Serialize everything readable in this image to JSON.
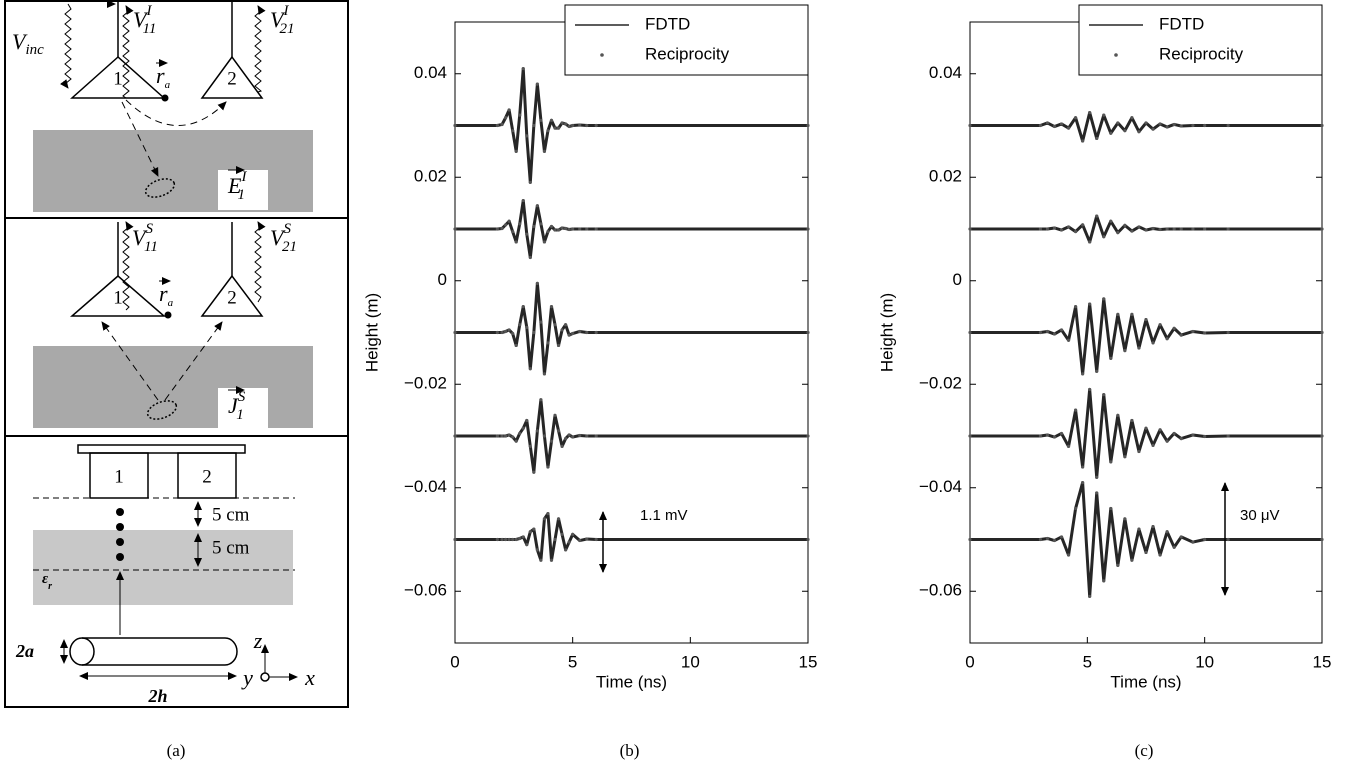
{
  "diagram": {
    "caption": "(a)",
    "top": {
      "antennas": [
        "1",
        "2"
      ],
      "v_inc": {
        "base": "V",
        "sub": "inc"
      },
      "v11": {
        "base": "V",
        "sub": "11",
        "sup": "I"
      },
      "v21": {
        "base": "V",
        "sub": "21",
        "sup": "I"
      },
      "ra": {
        "base": "r",
        "sub": "a"
      },
      "field": {
        "base": "E",
        "sub": "1",
        "sup": "I"
      }
    },
    "middle": {
      "antennas": [
        "1",
        "2"
      ],
      "v11": {
        "base": "V",
        "sub": "11",
        "sup": "S"
      },
      "v21": {
        "base": "V",
        "sub": "21",
        "sup": "S"
      },
      "ra": {
        "base": "r",
        "sub": "a"
      },
      "current": {
        "base": "J",
        "sub": "1",
        "sup": "S"
      }
    },
    "bottom": {
      "antennas": [
        "1",
        "2"
      ],
      "gap_1": "5 cm",
      "gap_2": "5 cm",
      "eps": {
        "base": "ε",
        "sub": "r"
      },
      "radius": "2a",
      "length": "2h",
      "axis_z": "z",
      "axis_y": "y",
      "axis_x": "x"
    }
  },
  "chart_data": [
    {
      "type": "line",
      "caption": "(b)",
      "xlabel": "Time (ns)",
      "ylabel": "Height (m)",
      "annotation": "1.1 mV",
      "xlim": [
        0,
        15
      ],
      "xticks": [
        0,
        5,
        10,
        15
      ],
      "ylim": [
        -0.07,
        0.05
      ],
      "yticks": [
        {
          "value": -0.06,
          "label": "−0.06"
        },
        {
          "value": -0.04,
          "label": "−0.04"
        },
        {
          "value": -0.02,
          "label": "−0.02"
        },
        0,
        0.02,
        0.04
      ],
      "legend": "upper right",
      "series": [
        {
          "name": "FDTD",
          "style": "line",
          "color": "#262626"
        },
        {
          "name": "Reciprocity",
          "style": "dots",
          "color": "#555555"
        }
      ],
      "x": [
        0,
        1.8,
        2.0,
        2.15,
        2.3,
        2.45,
        2.6,
        2.75,
        2.9,
        3.05,
        3.2,
        3.35,
        3.5,
        3.65,
        3.8,
        3.95,
        4.1,
        4.25,
        4.4,
        4.55,
        4.7,
        4.85,
        5.0,
        5.3,
        5.6,
        6.0,
        15
      ],
      "traces": [
        [
          0.03,
          0.03,
          0.0302,
          0.0315,
          0.033,
          0.029,
          0.025,
          0.032,
          0.041,
          0.028,
          0.019,
          0.03,
          0.038,
          0.031,
          0.025,
          0.029,
          0.031,
          0.0295,
          0.0295,
          0.0305,
          0.0303,
          0.0298,
          0.03,
          0.0301,
          0.03,
          0.03,
          0.03
        ],
        [
          0.01,
          0.01,
          0.0101,
          0.0108,
          0.0115,
          0.0095,
          0.0075,
          0.011,
          0.0155,
          0.009,
          0.0045,
          0.0105,
          0.0145,
          0.011,
          0.0075,
          0.0095,
          0.0105,
          0.0098,
          0.0098,
          0.0102,
          0.0101,
          0.0099,
          0.01,
          0.01,
          0.01,
          0.01,
          0.01
        ],
        [
          -0.01,
          -0.01,
          -0.01,
          -0.0098,
          -0.0095,
          -0.0102,
          -0.0125,
          -0.0085,
          -0.005,
          -0.009,
          -0.017,
          -0.01,
          -0.0005,
          -0.008,
          -0.018,
          -0.012,
          -0.005,
          -0.0085,
          -0.0125,
          -0.0095,
          -0.0085,
          -0.0105,
          -0.0102,
          -0.0098,
          -0.01,
          -0.01,
          -0.01
        ],
        [
          -0.03,
          -0.03,
          -0.03,
          -0.03,
          -0.0298,
          -0.0302,
          -0.031,
          -0.0295,
          -0.0285,
          -0.027,
          -0.032,
          -0.037,
          -0.029,
          -0.023,
          -0.03,
          -0.036,
          -0.031,
          -0.026,
          -0.029,
          -0.032,
          -0.0305,
          -0.0298,
          -0.0302,
          -0.0299,
          -0.03,
          -0.03,
          -0.03
        ],
        [
          -0.05,
          -0.05,
          -0.05,
          -0.05,
          -0.05,
          -0.05,
          -0.05,
          -0.0498,
          -0.0495,
          -0.051,
          -0.0485,
          -0.048,
          -0.052,
          -0.054,
          -0.046,
          -0.045,
          -0.054,
          -0.05,
          -0.046,
          -0.049,
          -0.052,
          -0.0505,
          -0.049,
          -0.0502,
          -0.0499,
          -0.05,
          -0.05
        ]
      ]
    },
    {
      "type": "line",
      "caption": "(c)",
      "xlabel": "Time (ns)",
      "ylabel": "Height (m)",
      "annotation": "30 μV",
      "xlim": [
        0,
        15
      ],
      "xticks": [
        0,
        5,
        10,
        15
      ],
      "ylim": [
        -0.07,
        0.05
      ],
      "yticks": [
        {
          "value": -0.06,
          "label": "−0.06"
        },
        {
          "value": -0.04,
          "label": "−0.04"
        },
        {
          "value": -0.02,
          "label": "−0.02"
        },
        0,
        0.02,
        0.04
      ],
      "legend": "upper right",
      "series": [
        {
          "name": "FDTD",
          "style": "line",
          "color": "#262626"
        },
        {
          "name": "Reciprocity",
          "style": "dots",
          "color": "#555555"
        }
      ],
      "x": [
        0,
        3.0,
        3.3,
        3.6,
        3.9,
        4.2,
        4.5,
        4.8,
        5.1,
        5.4,
        5.7,
        6.0,
        6.3,
        6.6,
        6.9,
        7.2,
        7.5,
        7.8,
        8.1,
        8.4,
        8.7,
        9.0,
        9.5,
        10,
        11,
        15
      ],
      "traces": [
        [
          0.03,
          0.03,
          0.0305,
          0.0298,
          0.0303,
          0.0295,
          0.0315,
          0.027,
          0.0325,
          0.0275,
          0.032,
          0.0285,
          0.0305,
          0.029,
          0.0315,
          0.0288,
          0.0305,
          0.0293,
          0.0303,
          0.0297,
          0.0302,
          0.0299,
          0.03,
          0.03,
          0.03,
          0.03
        ],
        [
          0.01,
          0.01,
          0.01,
          0.0102,
          0.0098,
          0.0104,
          0.0095,
          0.0108,
          0.0075,
          0.0125,
          0.0085,
          0.0115,
          0.0093,
          0.0107,
          0.0096,
          0.0104,
          0.0098,
          0.0101,
          0.0099,
          0.01,
          0.01,
          0.01,
          0.01,
          0.01,
          0.01,
          0.01
        ],
        [
          -0.01,
          -0.01,
          -0.0098,
          -0.0103,
          -0.0095,
          -0.0115,
          -0.005,
          -0.018,
          -0.0045,
          -0.0175,
          -0.0035,
          -0.015,
          -0.0065,
          -0.0135,
          -0.0065,
          -0.013,
          -0.0075,
          -0.012,
          -0.0085,
          -0.0112,
          -0.0092,
          -0.0105,
          -0.0098,
          -0.0101,
          -0.01,
          -0.01
        ],
        [
          -0.03,
          -0.03,
          -0.0298,
          -0.0302,
          -0.0295,
          -0.032,
          -0.025,
          -0.036,
          -0.021,
          -0.038,
          -0.022,
          -0.035,
          -0.026,
          -0.034,
          -0.027,
          -0.033,
          -0.0285,
          -0.0318,
          -0.0288,
          -0.031,
          -0.0295,
          -0.0305,
          -0.0298,
          -0.0301,
          -0.03,
          -0.03
        ],
        [
          -0.05,
          -0.05,
          -0.0498,
          -0.0502,
          -0.0495,
          -0.053,
          -0.044,
          -0.039,
          -0.061,
          -0.041,
          -0.058,
          -0.044,
          -0.055,
          -0.046,
          -0.054,
          -0.048,
          -0.0525,
          -0.0475,
          -0.053,
          -0.0485,
          -0.0515,
          -0.0495,
          -0.0505,
          -0.05,
          -0.05,
          -0.05
        ]
      ]
    }
  ]
}
